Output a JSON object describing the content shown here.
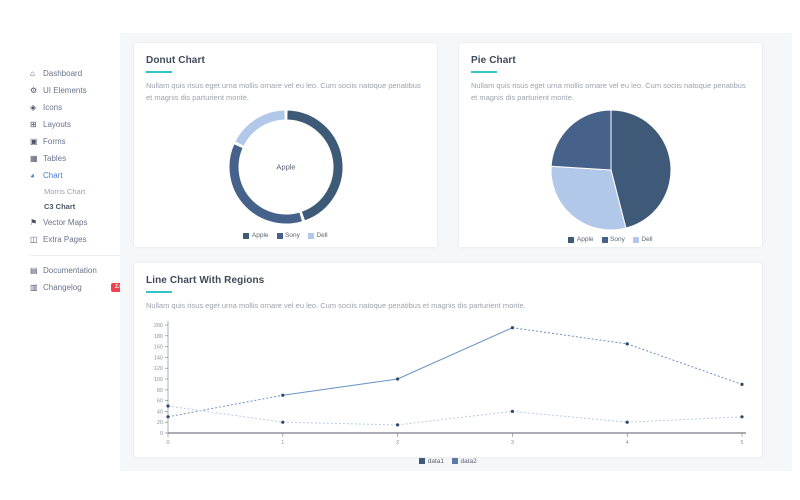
{
  "colors": {
    "accent_teal": "#32c5c8",
    "accent_blue": "#4a81d4",
    "badge_red": "#f0414f",
    "navy": "#3d5a77",
    "axis": "#75808c",
    "tick_text": "#8b949e"
  },
  "sidebar": {
    "items": [
      {
        "label": "Dashboard",
        "icon": "home-icon"
      },
      {
        "label": "UI Elements",
        "icon": "gear-icon",
        "chevron": "›"
      },
      {
        "label": "Icons",
        "icon": "gem-icon",
        "chevron": "›"
      },
      {
        "label": "Layouts",
        "icon": "layout-icon",
        "chevron": "›"
      },
      {
        "label": "Forms",
        "icon": "form-icon",
        "chevron": "›"
      },
      {
        "label": "Tables",
        "icon": "table-icon",
        "chevron": "›"
      },
      {
        "label": "Chart",
        "icon": "chart-icon",
        "chevron": "›",
        "active": true,
        "expanded": true,
        "children": [
          {
            "label": "Morris Chart"
          },
          {
            "label": "C3 Chart",
            "active": true
          }
        ]
      },
      {
        "label": "Vector Maps",
        "icon": "map-pin-icon"
      },
      {
        "label": "Extra Pages",
        "icon": "pages-icon",
        "chevron": "›"
      }
    ],
    "footer_items": [
      {
        "label": "Documentation",
        "icon": "document-icon"
      },
      {
        "label": "Changelog",
        "icon": "changelog-icon",
        "badge": "2.0"
      }
    ]
  },
  "cards": {
    "donut": {
      "title": "Donut Chart",
      "description": "Nullam quis risus eget urna mollis ornare vel eu leo. Cum sociis natoque penatibus et magnis dis parturient monte."
    },
    "pie": {
      "title": "Pie Chart",
      "description": "Nullam quis risus eget urna mollis ornare vel eu leo. Cum sociis natoque penatibus et magnis dis parturient monte."
    },
    "line": {
      "title": "Line Chart With Regions",
      "description": "Nullam quis risus eget urna mollis ornare vel eu leo. Cum sociis natoque penatibus et magnis dis parturient monte."
    }
  },
  "chart_data": [
    {
      "id": "donut",
      "type": "donut",
      "title": "Donut Chart",
      "center_label": "Apple",
      "slices": [
        {
          "label": "Apple",
          "value": 45,
          "color": "#3d5a77"
        },
        {
          "label": "Sony",
          "value": 37,
          "color": "#46628a"
        },
        {
          "label": "Dell",
          "value": 18,
          "color": "#b2c8e8"
        }
      ],
      "legend": [
        "Apple",
        "Sony",
        "Dell"
      ],
      "legend_colors": [
        "#3d5a77",
        "#46628a",
        "#b2c8e8"
      ],
      "legend_position": "bottom"
    },
    {
      "id": "pie",
      "type": "pie",
      "title": "Pie Chart",
      "slices": [
        {
          "label": "Apple",
          "value": 46,
          "color": "#3e5a78"
        },
        {
          "label": "Dell",
          "value": 30,
          "color": "#b2c8e8"
        },
        {
          "label": "Sony",
          "value": 24,
          "color": "#46628a"
        }
      ],
      "legend": [
        "Apple",
        "Sony",
        "Dell"
      ],
      "legend_colors": [
        "#3e5a78",
        "#46628a",
        "#b2c8e8"
      ],
      "legend_position": "bottom"
    },
    {
      "id": "line",
      "type": "line",
      "title": "Line Chart With Regions",
      "x": [
        0,
        1,
        2,
        3,
        4,
        5
      ],
      "x_tick_labels": [
        "0",
        "1",
        "2",
        "3",
        "4",
        "5"
      ],
      "y_ticks": [
        0,
        20,
        40,
        60,
        80,
        100,
        120,
        140,
        160,
        180,
        200
      ],
      "ylim": [
        0,
        200
      ],
      "grid": false,
      "series": [
        {
          "name": "data1",
          "values": [
            30,
            70,
            100,
            195,
            165,
            90
          ],
          "color": "#6b93c4",
          "point_color": "#2e4a6b",
          "dashed_segments": [
            [
              0,
              1
            ],
            [
              3,
              5
            ]
          ]
        },
        {
          "name": "data2",
          "values": [
            50,
            20,
            15,
            40,
            20,
            30
          ],
          "color": "#b5cbe6",
          "point_color": "#2e4a6b",
          "dashed_segments": [
            [
              0,
              5
            ]
          ]
        }
      ],
      "legend": [
        "data1",
        "data2"
      ],
      "legend_colors": [
        "#3d5a77",
        "#5d7ba3"
      ],
      "legend_position": "bottom"
    }
  ]
}
